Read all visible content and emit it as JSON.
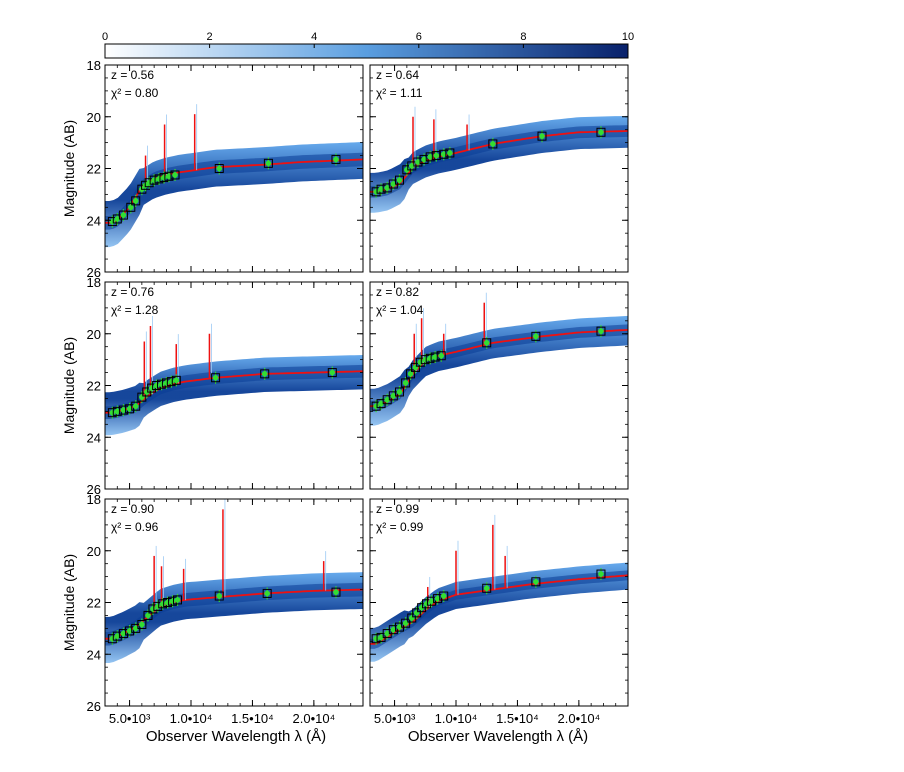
{
  "colorbar": {
    "ticks": [
      "0",
      "2",
      "4",
      "6",
      "8",
      "10"
    ],
    "min": 0,
    "max": 10,
    "colors": {
      "low": "#ffffff",
      "mid": "#5a9ee0",
      "high": "#08216b"
    }
  },
  "axes_text": {
    "ylabel": "Magnitude (AB)",
    "xlabel": "Observer Wavelength λ (Å)",
    "y_ticks": [
      "18",
      "20",
      "22",
      "24",
      "26"
    ],
    "x_ticks": [
      "5.0•10³",
      "1.0•10⁴",
      "1.5•10⁴",
      "2.0•10⁴"
    ]
  },
  "colors": {
    "model": "#ee1111",
    "photometry": "#33dd33",
    "band": "#2a78d8",
    "band_dark": "#0a3d96",
    "band_light": "#9ccaf4"
  },
  "chart_data": [
    {
      "type": "scatter",
      "title": "",
      "panel": "z = 0.56",
      "annotations": [
        "z = 0.56",
        "χ² = 0.80"
      ],
      "xlabel": "",
      "ylabel": "Magnitude (AB)",
      "xlim": [
        3000,
        24000
      ],
      "ylim": [
        26,
        18
      ],
      "model_curve": {
        "x": [
          3500,
          4000,
          5000,
          6000,
          7000,
          8000,
          9000,
          12000,
          16000,
          19000,
          24000
        ],
        "y": [
          24.1,
          24.0,
          23.5,
          22.7,
          22.4,
          22.25,
          22.15,
          21.95,
          21.85,
          21.75,
          21.65
        ]
      },
      "band_width": 0.75,
      "emission_lines": [
        [
          6300,
          21.5
        ],
        [
          7850,
          20.3
        ],
        [
          10300,
          19.9
        ]
      ],
      "photometry_boxes": {
        "x": [
          3600,
          4000,
          4500,
          5100,
          5500,
          6000,
          6300,
          6600,
          7000,
          7400,
          7800,
          8200,
          8700,
          12300,
          16300,
          21800
        ],
        "y": [
          24.05,
          23.95,
          23.8,
          23.5,
          23.25,
          22.8,
          22.65,
          22.55,
          22.45,
          22.4,
          22.35,
          22.3,
          22.25,
          22.0,
          21.8,
          21.65
        ]
      }
    },
    {
      "type": "scatter",
      "title": "",
      "panel": "z = 0.64",
      "annotations": [
        "z = 0.64",
        "χ² = 1.11"
      ],
      "xlabel": "",
      "ylabel": "",
      "xlim": [
        3000,
        24000
      ],
      "ylim": [
        26,
        18
      ],
      "model_curve": {
        "x": [
          3500,
          4500,
          5500,
          6500,
          7500,
          8500,
          10000,
          13000,
          17000,
          20000,
          24000
        ],
        "y": [
          22.9,
          22.8,
          22.55,
          21.95,
          21.7,
          21.55,
          21.4,
          21.05,
          20.75,
          20.6,
          20.55
        ]
      },
      "band_width": 0.65,
      "emission_lines": [
        [
          6500,
          20.0
        ],
        [
          8200,
          20.1
        ],
        [
          10900,
          20.3
        ]
      ],
      "photometry_boxes": {
        "x": [
          3500,
          3900,
          4400,
          4900,
          5400,
          6000,
          6400,
          6900,
          7400,
          7900,
          8400,
          9000,
          9500,
          13000,
          17000,
          21800
        ],
        "y": [
          22.9,
          22.8,
          22.75,
          22.6,
          22.45,
          22.05,
          21.9,
          21.75,
          21.65,
          21.55,
          21.5,
          21.45,
          21.4,
          21.05,
          20.75,
          20.6
        ]
      }
    },
    {
      "type": "scatter",
      "title": "",
      "panel": "z = 0.76",
      "annotations": [
        "z = 0.76",
        "χ² = 1.28"
      ],
      "xlabel": "",
      "ylabel": "Magnitude (AB)",
      "xlim": [
        3000,
        24000
      ],
      "ylim": [
        26,
        18
      ],
      "model_curve": {
        "x": [
          3500,
          4500,
          5500,
          6500,
          7500,
          8500,
          9500,
          12000,
          16000,
          20000,
          24000
        ],
        "y": [
          23.05,
          22.95,
          22.8,
          22.4,
          22.1,
          21.95,
          21.85,
          21.7,
          21.55,
          21.5,
          21.45
        ]
      },
      "band_width": 0.7,
      "emission_lines": [
        [
          6200,
          20.3
        ],
        [
          6700,
          19.7
        ],
        [
          8800,
          20.4
        ],
        [
          11500,
          20.0
        ]
      ],
      "photometry_boxes": {
        "x": [
          3600,
          4000,
          4500,
          5000,
          5500,
          6000,
          6400,
          6800,
          7200,
          7600,
          8000,
          8400,
          8800,
          12000,
          16000,
          21500
        ],
        "y": [
          23.05,
          23.0,
          22.95,
          22.9,
          22.8,
          22.45,
          22.25,
          22.1,
          22.0,
          21.95,
          21.9,
          21.85,
          21.8,
          21.7,
          21.55,
          21.5
        ]
      }
    },
    {
      "type": "scatter",
      "title": "",
      "panel": "z = 0.82",
      "annotations": [
        "z = 0.82",
        "χ² = 1.04"
      ],
      "xlabel": "",
      "ylabel": "",
      "xlim": [
        3000,
        24000
      ],
      "ylim": [
        26,
        18
      ],
      "model_curve": {
        "x": [
          3500,
          4500,
          5500,
          6500,
          7500,
          8500,
          10000,
          13000,
          17000,
          20000,
          24000
        ],
        "y": [
          22.8,
          22.6,
          22.3,
          21.55,
          21.05,
          20.85,
          20.7,
          20.35,
          20.1,
          19.95,
          19.85
        ]
      },
      "band_width": 0.6,
      "emission_lines": [
        [
          6600,
          20.0
        ],
        [
          7200,
          19.4
        ],
        [
          9000,
          20.0
        ],
        [
          12300,
          18.8
        ]
      ],
      "photometry_boxes": {
        "x": [
          3500,
          3900,
          4400,
          4900,
          5400,
          5900,
          6300,
          6700,
          7100,
          7500,
          7900,
          8300,
          8800,
          12500,
          16500,
          21800
        ],
        "y": [
          22.8,
          22.7,
          22.55,
          22.4,
          22.25,
          21.9,
          21.55,
          21.3,
          21.1,
          21.0,
          20.95,
          20.9,
          20.85,
          20.35,
          20.1,
          19.9
        ]
      }
    },
    {
      "type": "scatter",
      "title": "",
      "panel": "z = 0.90",
      "annotations": [
        "z = 0.90",
        "χ² = 0.96"
      ],
      "xlabel": "Observer Wavelength λ (Å)",
      "ylabel": "Magnitude (AB)",
      "xlim": [
        3000,
        24000
      ],
      "ylim": [
        26,
        18
      ],
      "model_curve": {
        "x": [
          3500,
          4500,
          5500,
          6500,
          7500,
          8500,
          9500,
          12000,
          16000,
          20000,
          24000
        ],
        "y": [
          23.4,
          23.2,
          22.95,
          22.55,
          22.15,
          22.0,
          21.9,
          21.8,
          21.65,
          21.55,
          21.5
        ]
      },
      "band_width": 0.75,
      "emission_lines": [
        [
          7000,
          20.2
        ],
        [
          7600,
          20.6
        ],
        [
          9400,
          20.7
        ],
        [
          12600,
          18.4
        ],
        [
          20800,
          20.4
        ]
      ],
      "photometry_boxes": {
        "x": [
          3600,
          4000,
          4500,
          5000,
          5500,
          6000,
          6500,
          6900,
          7300,
          7700,
          8100,
          8500,
          8900,
          12300,
          16200,
          21800
        ],
        "y": [
          23.4,
          23.3,
          23.2,
          23.1,
          23.0,
          22.85,
          22.5,
          22.25,
          22.15,
          22.05,
          22.0,
          21.95,
          21.9,
          21.75,
          21.65,
          21.6
        ]
      }
    },
    {
      "type": "scatter",
      "title": "",
      "panel": "z = 0.99",
      "annotations": [
        "z = 0.99",
        "χ² = 0.99"
      ],
      "xlabel": "Observer Wavelength λ (Å)",
      "ylabel": "",
      "xlim": [
        3000,
        24000
      ],
      "ylim": [
        26,
        18
      ],
      "model_curve": {
        "x": [
          3500,
          4500,
          5500,
          6500,
          7500,
          8500,
          10000,
          13000,
          16000,
          20000,
          24000
        ],
        "y": [
          23.6,
          23.3,
          23.0,
          22.75,
          22.3,
          21.95,
          21.7,
          21.5,
          21.3,
          21.1,
          20.95
        ]
      },
      "band_width": 0.55,
      "emission_lines": [
        [
          7700,
          21.4
        ],
        [
          10000,
          20.0
        ],
        [
          13000,
          19.0
        ],
        [
          14000,
          20.2
        ]
      ],
      "photometry_boxes": {
        "x": [
          3500,
          3900,
          4400,
          4900,
          5400,
          5900,
          6400,
          6800,
          7200,
          7600,
          8000,
          8500,
          9000,
          12500,
          16500,
          21800
        ],
        "y": [
          23.4,
          23.35,
          23.2,
          23.05,
          22.95,
          22.8,
          22.6,
          22.4,
          22.2,
          22.05,
          21.95,
          21.85,
          21.75,
          21.45,
          21.2,
          20.9
        ]
      }
    }
  ]
}
